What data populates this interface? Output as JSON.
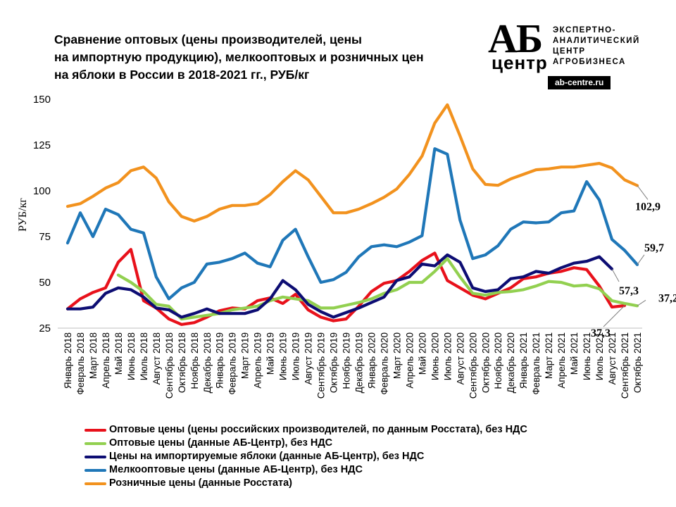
{
  "title_lines": [
    "Сравнение оптовых (цены производителей, цены",
    "на импортную продукцию), мелкооптовых и розничных цен",
    "на яблоки в России в 2018-2021 гг., РУБ/кг"
  ],
  "logo": {
    "abbr": "АБ",
    "center": "центр",
    "lines": [
      "ЭКСПЕРТНО-",
      "АНАЛИТИЧЕСКИЙ",
      "ЦЕНТР",
      "АГРОБИЗНЕСА"
    ],
    "url": "ab-centre.ru"
  },
  "colors": {
    "red": "#e8111b",
    "green": "#92d050",
    "navy": "#0d0d73",
    "blue": "#1f77b8",
    "orange": "#f2921e"
  },
  "chart_data": {
    "type": "line",
    "title": "Сравнение оптовых (цены производителей, цены на импортную продукцию), мелкооптовых и розничных цен на яблоки в России в 2018-2021 гг., РУБ/кг",
    "ylabel": "РУБ/кг",
    "ylim": [
      25,
      150
    ],
    "yticks": [
      25,
      50,
      75,
      100,
      125,
      150
    ],
    "categories": [
      "Январь 2018",
      "Февраль 2018",
      "Март 2018",
      "Апрель 2018",
      "Май 2018",
      "Июнь 2018",
      "Июль 2018",
      "Август 2018",
      "Сентябрь 2018",
      "Октябрь 2018",
      "Ноябрь 2018",
      "Декабрь 2018",
      "Январь 2019",
      "Февраль 2019",
      "Март 2019",
      "Апрель 2019",
      "Май 2019",
      "Июнь 2019",
      "Июль 2019",
      "Август 2019",
      "Сентябрь 2019",
      "Октябрь 2019",
      "Ноябрь 2019",
      "Декабрь 2019",
      "Январь 2020",
      "Февраль 2020",
      "Март 2020",
      "Апрель 2020",
      "Май 2020",
      "Июнь 2020",
      "Июль 2020",
      "Август 2020",
      "Сентябрь 2020",
      "Октябрь 2020",
      "Ноябрь 2020",
      "Декабрь 2020",
      "Январь 2021",
      "Февраль 2021",
      "Март 2021",
      "Апрель 2021",
      "Май 2021",
      "Июнь 2021",
      "Июль 2021",
      "Август 2021",
      "Сентябрь 2021",
      "Октябрь 2021"
    ],
    "series": [
      {
        "name": "Оптовые цены (цены российских производителей, по данным Росстата), без НДС",
        "color": "#e8111b",
        "values": [
          35.5,
          41,
          44.5,
          47,
          61,
          68,
          40,
          36,
          30,
          27,
          28,
          31,
          34.5,
          36,
          35.5,
          40,
          41.5,
          38.5,
          43.5,
          35,
          31,
          29,
          30,
          37,
          45,
          49.5,
          51,
          56,
          62,
          66,
          51,
          47,
          43,
          41,
          44,
          47,
          52,
          53,
          55,
          56,
          58,
          57,
          48,
          36.5,
          37.3,
          null
        ],
        "end_label": "37,3"
      },
      {
        "name": "Оптовые цены (данные АБ-Центр), без НДС",
        "color": "#92d050",
        "values": [
          null,
          null,
          null,
          null,
          54,
          50,
          45,
          38,
          37,
          30,
          31,
          32,
          33,
          35,
          36,
          37,
          40,
          42,
          41,
          40,
          36,
          36,
          37.5,
          39,
          41,
          44,
          46,
          50,
          50,
          56,
          63,
          53,
          44,
          43,
          44.5,
          45,
          46,
          48,
          50.5,
          50,
          48,
          48.5,
          46.5,
          40,
          38.5,
          37.2
        ],
        "end_label": "37,2"
      },
      {
        "name": "Цены на импортируемые яблоки (данные АБ-Центр), без НДС",
        "color": "#0d0d73",
        "values": [
          35.5,
          35.5,
          36.5,
          44,
          47,
          46,
          42,
          36,
          35,
          31,
          33,
          35.5,
          33,
          33,
          33,
          35,
          41,
          51,
          46,
          38,
          34,
          31,
          33.5,
          36,
          39,
          42,
          51,
          53,
          60,
          59,
          65,
          61,
          47,
          45,
          46,
          52,
          53,
          56,
          55,
          58,
          60.5,
          61.5,
          64,
          57.3,
          null,
          null
        ],
        "end_label": "57,3"
      },
      {
        "name": "Мелкооптовые цены (данные АБ-Центр), без НДС",
        "color": "#1f77b8",
        "values": [
          71.5,
          88,
          75,
          90,
          87,
          79,
          77,
          53,
          41,
          47,
          50,
          60,
          61,
          63,
          66,
          60.5,
          58.5,
          73,
          79,
          64,
          50,
          51.5,
          55.5,
          64,
          69.5,
          70.5,
          69.5,
          72,
          75.5,
          123,
          120,
          84,
          63,
          65,
          70,
          79,
          83,
          82.5,
          83,
          88,
          89,
          105,
          95,
          73.5,
          67.5,
          59.7
        ],
        "end_label": "59,7"
      },
      {
        "name": "Розничные цены (данные Росстата)",
        "color": "#f2921e",
        "values": [
          91.5,
          93,
          97,
          101.5,
          104.5,
          111,
          113,
          107,
          94,
          86,
          83.5,
          86,
          90,
          92,
          92,
          93,
          98,
          105,
          111,
          106,
          97,
          88,
          88,
          90,
          93,
          96.5,
          101,
          109,
          119,
          137,
          147,
          130,
          112,
          103.5,
          103,
          106.5,
          109,
          111.5,
          112,
          113,
          113,
          114,
          115,
          112.5,
          106,
          102.9
        ],
        "end_label": "102,9"
      }
    ]
  }
}
